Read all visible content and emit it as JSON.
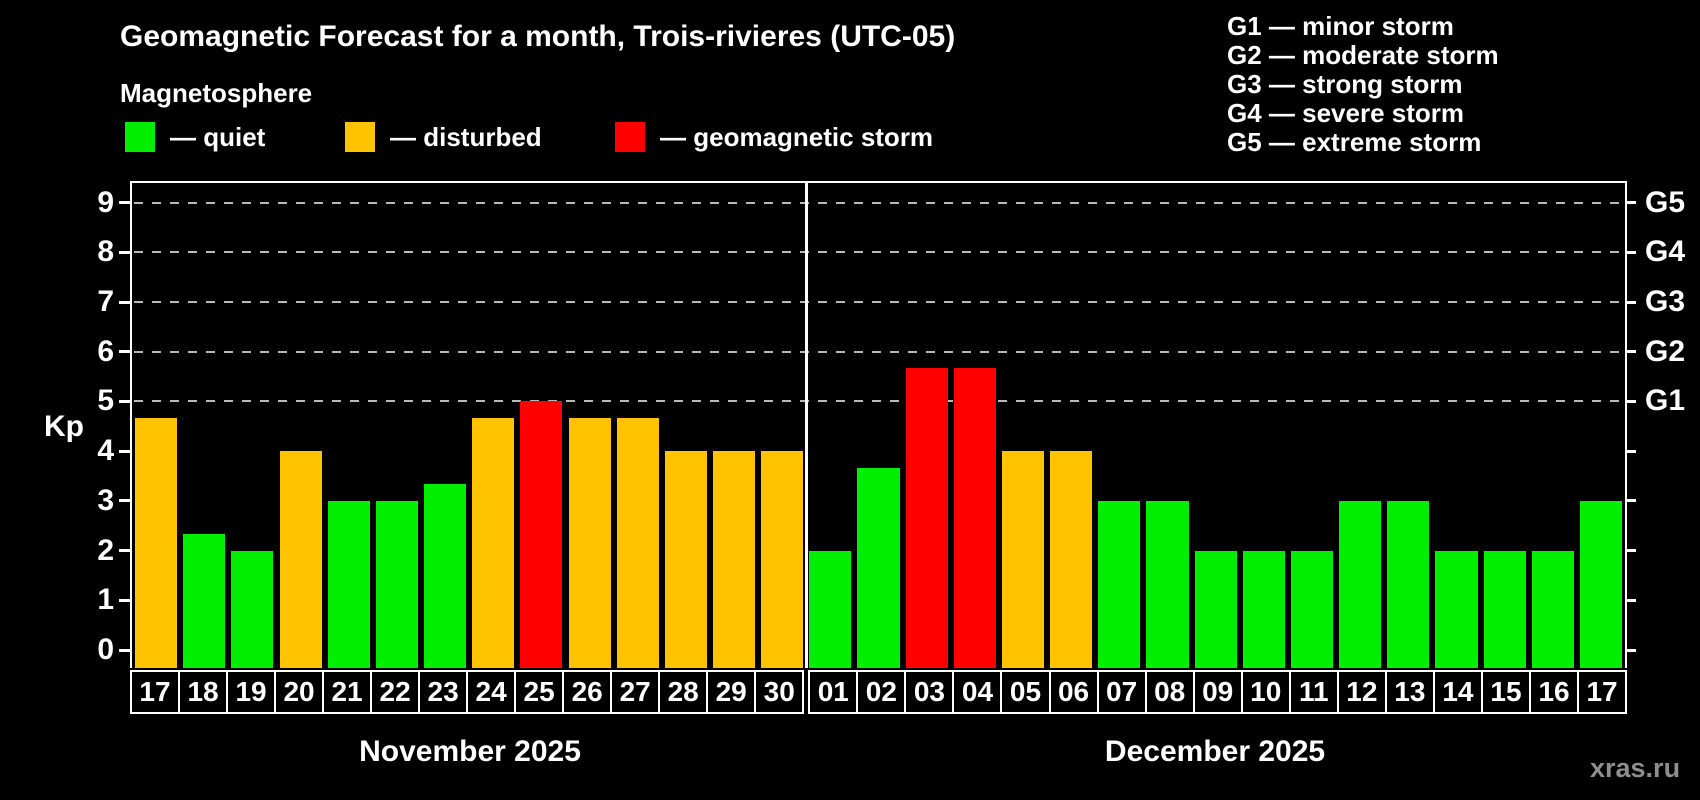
{
  "title": "Geomagnetic Forecast for a month, Trois-rivieres (UTC-05)",
  "subtitle": "Magnetosphere",
  "status_legend": [
    {
      "name": "quiet",
      "label": "— quiet",
      "color": "#00ee00"
    },
    {
      "name": "disturbed",
      "label": "— disturbed",
      "color": "#ffc300"
    },
    {
      "name": "storm",
      "label": "— geomagnetic storm",
      "color": "#ff0000"
    }
  ],
  "g_scale_legend": [
    "G1 — minor storm",
    "G2 — moderate storm",
    "G3 — strong storm",
    "G4 — severe storm",
    "G5 — extreme storm"
  ],
  "watermark": "xras.ru",
  "chart_data": {
    "type": "bar",
    "title": "Geomagnetic Forecast for a month, Trois-rivieres (UTC-05)",
    "ylabel": "Kp",
    "ylim": [
      0,
      9.4
    ],
    "y_ticks": [
      0,
      1,
      2,
      3,
      4,
      5,
      6,
      7,
      8,
      9
    ],
    "grid_kp": [
      5,
      6,
      7,
      8,
      9
    ],
    "grid_style": "dashed",
    "legend_position": "top",
    "right_axis_labels": [
      {
        "kp": 5,
        "label": "G1"
      },
      {
        "kp": 6,
        "label": "G2"
      },
      {
        "kp": 7,
        "label": "G3"
      },
      {
        "kp": 8,
        "label": "G4"
      },
      {
        "kp": 9,
        "label": "G5"
      }
    ],
    "months": [
      {
        "label": "November 2025",
        "days": [
          "17",
          "18",
          "19",
          "20",
          "21",
          "22",
          "23",
          "24",
          "25",
          "26",
          "27",
          "28",
          "29",
          "30"
        ],
        "values": [
          4.67,
          2.33,
          2,
          4,
          3,
          3,
          3.33,
          4.67,
          5,
          4.67,
          4.67,
          4,
          4,
          4
        ],
        "statuses": [
          "disturbed",
          "quiet",
          "quiet",
          "disturbed",
          "quiet",
          "quiet",
          "quiet",
          "disturbed",
          "storm",
          "disturbed",
          "disturbed",
          "disturbed",
          "disturbed",
          "disturbed"
        ]
      },
      {
        "label": "December 2025",
        "days": [
          "01",
          "02",
          "03",
          "04",
          "05",
          "06",
          "07",
          "08",
          "09",
          "10",
          "11",
          "12",
          "13",
          "14",
          "15",
          "16",
          "17"
        ],
        "values": [
          2,
          3.67,
          5.67,
          5.67,
          4,
          4,
          3,
          3,
          2,
          2,
          2,
          3,
          3,
          2,
          2,
          2,
          3
        ],
        "statuses": [
          "quiet",
          "quiet",
          "storm",
          "storm",
          "disturbed",
          "disturbed",
          "quiet",
          "quiet",
          "quiet",
          "quiet",
          "quiet",
          "quiet",
          "quiet",
          "quiet",
          "quiet",
          "quiet",
          "quiet"
        ]
      }
    ]
  }
}
